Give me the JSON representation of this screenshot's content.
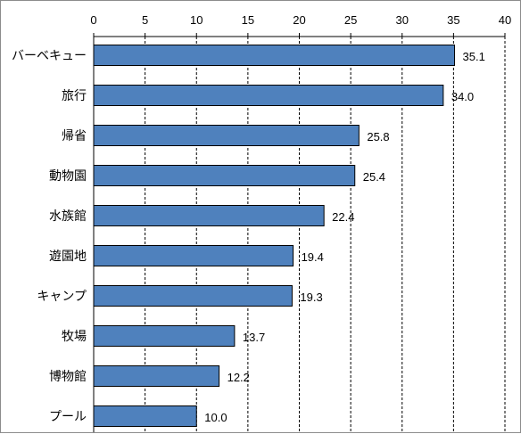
{
  "chart_data": {
    "type": "bar",
    "orientation": "horizontal",
    "title": "",
    "xlabel": "",
    "ylabel": "",
    "xlim": [
      0,
      40
    ],
    "x_ticks": [
      0,
      5,
      10,
      15,
      20,
      25,
      30,
      35,
      40
    ],
    "x_axis_position": "top",
    "grid": "vertical dashed",
    "legend": "none",
    "categories": [
      "バーベキュー",
      "旅行",
      "帰省",
      "動物園",
      "水族館",
      "遊園地",
      "キャンプ",
      "牧場",
      "博物館",
      "プール"
    ],
    "values": [
      35.1,
      34.0,
      25.8,
      25.4,
      22.4,
      19.4,
      19.3,
      13.7,
      12.2,
      10.0
    ],
    "data_labels": [
      "35.1",
      "34.0",
      "25.8",
      "25.4",
      "22.4",
      "19.4",
      "19.3",
      "13.7",
      "12.2",
      "10.0"
    ],
    "colors": {
      "bar_fill": "#4f81bd",
      "bar_stroke": "#000000",
      "grid": "#000000"
    }
  }
}
